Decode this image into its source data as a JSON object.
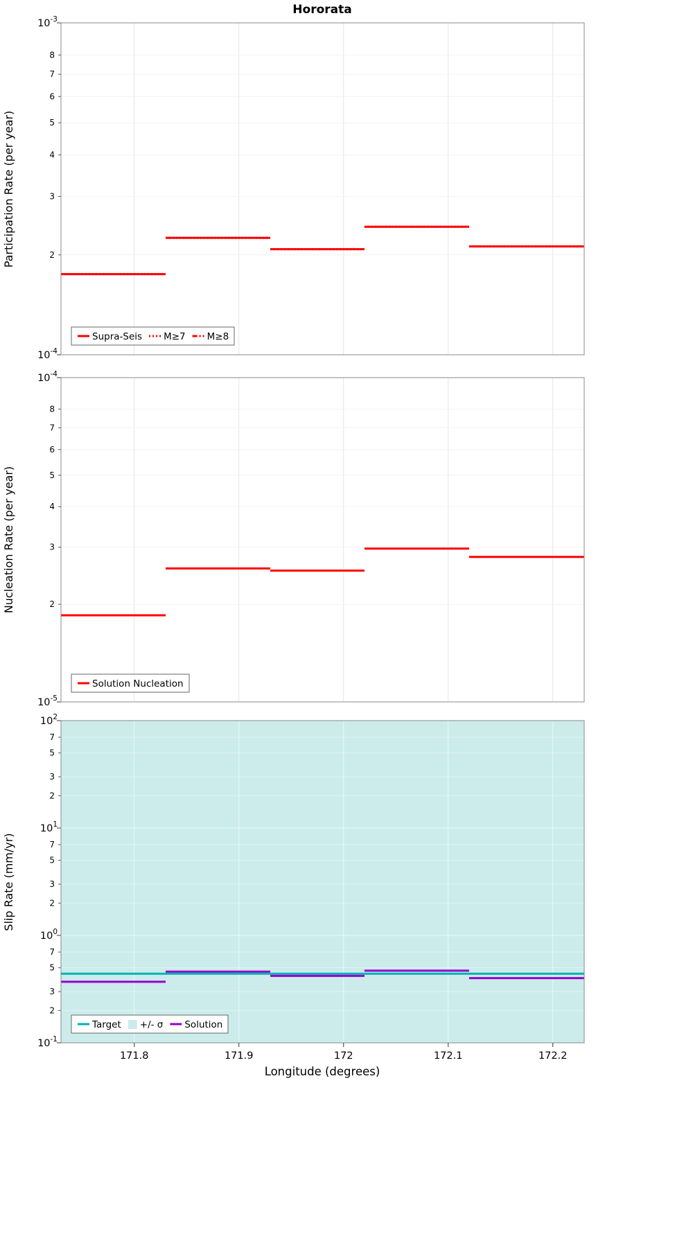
{
  "title": "Hororata",
  "xlabel": "Longitude (degrees)",
  "x_range": [
    171.73,
    172.23
  ],
  "x_ticks": [
    {
      "value": 171.8,
      "label": "171.8"
    },
    {
      "value": 171.9,
      "label": "171.9"
    },
    {
      "value": 172.0,
      "label": "172"
    },
    {
      "value": 172.1,
      "label": "172.1"
    },
    {
      "value": 172.2,
      "label": "172.2"
    }
  ],
  "colors": {
    "red": "#ff0000",
    "teal": "#00b2b2",
    "purple": "#9400d3",
    "sigma": "#ccecec",
    "border": "#888888",
    "tick": "#555555"
  },
  "chart_data": [
    {
      "type": "line",
      "name": "participation",
      "ylabel": "Participation Rate (per year)",
      "ylog_range": [
        -4,
        -3
      ],
      "y_major_labels": [
        {
          "log": -3,
          "mantissa": "10",
          "exp": "-3"
        },
        {
          "log": -4,
          "mantissa": "10",
          "exp": "-4"
        }
      ],
      "y_minor_digits": [
        8,
        7,
        6,
        5,
        4,
        3,
        2
      ],
      "series": [
        {
          "name": "Supra-Seis",
          "color": "red",
          "dash": "solid",
          "segments": [
            [
              171.73,
              171.83,
              0.000175
            ],
            [
              171.83,
              171.93,
              0.000225
            ],
            [
              171.93,
              172.02,
              0.000208
            ],
            [
              172.02,
              172.12,
              0.000243
            ],
            [
              172.12,
              172.23,
              0.000212
            ]
          ]
        },
        {
          "name": "M≥7",
          "color": "red",
          "dash": "dotted",
          "segments": [
            [
              171.73,
              171.83,
              0.000175
            ],
            [
              171.83,
              171.93,
              0.000225
            ],
            [
              171.93,
              172.02,
              0.000208
            ],
            [
              172.02,
              172.12,
              0.000243
            ],
            [
              172.12,
              172.23,
              0.000212
            ]
          ]
        },
        {
          "name": "M≥8",
          "color": "red",
          "dash": "dashdot",
          "segments": []
        }
      ],
      "legend": [
        {
          "label": "Supra-Seis",
          "swatch": "line",
          "dash": "solid",
          "color": "red"
        },
        {
          "label": "M≥7",
          "swatch": "line",
          "dash": "dotted",
          "color": "red"
        },
        {
          "label": "M≥8",
          "swatch": "line",
          "dash": "dashdot",
          "color": "red"
        }
      ]
    },
    {
      "type": "line",
      "name": "nucleation",
      "ylabel": "Nucleation Rate (per year)",
      "ylog_range": [
        -5,
        -4
      ],
      "y_major_labels": [
        {
          "log": -4,
          "mantissa": "10",
          "exp": "-4"
        },
        {
          "log": -5,
          "mantissa": "10",
          "exp": "-5"
        }
      ],
      "y_minor_digits": [
        8,
        7,
        6,
        5,
        4,
        3,
        2
      ],
      "series": [
        {
          "name": "Solution Nucleation",
          "color": "red",
          "dash": "solid",
          "segments": [
            [
              171.73,
              171.83,
              1.85e-05
            ],
            [
              171.83,
              171.93,
              2.58e-05
            ],
            [
              171.93,
              172.02,
              2.54e-05
            ],
            [
              172.02,
              172.12,
              2.97e-05
            ],
            [
              172.12,
              172.23,
              2.8e-05
            ]
          ]
        }
      ],
      "legend": [
        {
          "label": "Solution Nucleation",
          "swatch": "line",
          "dash": "solid",
          "color": "red"
        }
      ]
    },
    {
      "type": "line",
      "name": "slip-rate",
      "ylabel": "Slip Rate (mm/yr)",
      "ylog_range": [
        -1,
        2
      ],
      "background": "sigma",
      "y_major_labels": [
        {
          "log": 2,
          "mantissa": "10",
          "exp": "2"
        },
        {
          "log": 1,
          "mantissa": "10",
          "exp": "1"
        },
        {
          "log": 0,
          "mantissa": "10",
          "exp": "0"
        },
        {
          "log": -1,
          "mantissa": "10",
          "exp": "-1"
        }
      ],
      "y_minor_digits": [
        7,
        5,
        3,
        2
      ],
      "series": [
        {
          "name": "Target",
          "color": "teal",
          "dash": "solid",
          "segments": [
            [
              171.73,
              172.23,
              0.44
            ]
          ]
        },
        {
          "name": "Solution",
          "color": "purple",
          "dash": "solid",
          "segments": [
            [
              171.73,
              171.83,
              0.37
            ],
            [
              171.83,
              171.93,
              0.46
            ],
            [
              171.93,
              172.02,
              0.42
            ],
            [
              172.02,
              172.12,
              0.47
            ],
            [
              172.12,
              172.23,
              0.4
            ]
          ]
        }
      ],
      "legend": [
        {
          "label": "Target",
          "swatch": "line",
          "dash": "solid",
          "color": "teal"
        },
        {
          "label": "+/- σ",
          "swatch": "patch",
          "color": "sigma"
        },
        {
          "label": "Solution",
          "swatch": "line",
          "dash": "solid",
          "color": "purple"
        }
      ]
    }
  ]
}
